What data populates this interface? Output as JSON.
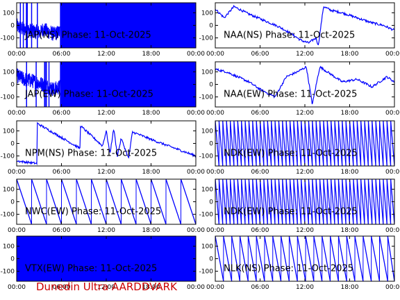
{
  "footer": {
    "text": "Dunedin Ultra AARDDVARK",
    "color": "#cc0000"
  },
  "colors": {
    "trace": "#0000ff",
    "axis": "#000000",
    "title": "#000000"
  },
  "chart_data": [
    {
      "type": "line",
      "title": "JAP(NS) Phase: 11-Oct-2025",
      "x_ticks": [
        "00:00",
        "06:00",
        "12:00",
        "18:00",
        "00:00"
      ],
      "y_ticks": [
        100,
        0,
        -100
      ],
      "ylim": [
        -180,
        180
      ],
      "xlim_hours": [
        0,
        24
      ],
      "grid": false,
      "series": [
        {
          "pattern": "noise",
          "x": [
            0,
            0.3,
            1.7,
            3.2,
            3.5,
            5.0,
            5.8
          ],
          "y": [
            0,
            -20,
            -40,
            -60,
            -30,
            -70,
            -50
          ]
        },
        {
          "pattern": "solid",
          "x": [
            5.8,
            24
          ],
          "y": [
            -180,
            180
          ]
        }
      ]
    },
    {
      "type": "line",
      "title": "NAA(NS) Phase: 11-Oct-2025",
      "x_ticks": [
        "00:00",
        "06:00",
        "12:00",
        "18:00",
        "00:00"
      ],
      "y_ticks": [
        100,
        0,
        -100
      ],
      "ylim": [
        -180,
        180
      ],
      "xlim_hours": [
        0,
        24
      ],
      "grid": false,
      "series": [
        {
          "pattern": "line",
          "x": [
            0,
            1.2,
            2.5,
            4.5,
            6.5,
            8.5,
            10,
            11.5,
            12.5,
            13.5,
            13.8,
            14.5,
            15.5,
            17,
            19,
            21,
            22.5,
            24
          ],
          "y": [
            130,
            60,
            150,
            90,
            40,
            -10,
            -60,
            -120,
            -140,
            -100,
            -160,
            150,
            120,
            100,
            60,
            20,
            0,
            -40
          ]
        }
      ]
    },
    {
      "type": "line",
      "title": "JAP(EW) Phase: 11-Oct-2025",
      "x_ticks": [
        "00:00",
        "06:00",
        "12:00",
        "18:00",
        "00:00"
      ],
      "y_ticks": [
        100,
        0,
        -100
      ],
      "ylim": [
        -180,
        180
      ],
      "xlim_hours": [
        0,
        24
      ],
      "grid": false,
      "series": [
        {
          "pattern": "noise",
          "x": [
            0,
            1.0,
            2.0,
            3.0,
            3.5,
            5.0,
            5.8
          ],
          "y": [
            70,
            40,
            30,
            10,
            0,
            -40,
            -20
          ]
        },
        {
          "pattern": "solid",
          "x": [
            5.8,
            24
          ],
          "y": [
            -180,
            180
          ]
        }
      ]
    },
    {
      "type": "line",
      "title": "NAA(EW) Phase: 11-Oct-2025",
      "x_ticks": [
        "00:00",
        "06:00",
        "12:00",
        "18:00",
        "00:00"
      ],
      "y_ticks": [
        100,
        0,
        -100
      ],
      "ylim": [
        -180,
        180
      ],
      "xlim_hours": [
        0,
        24
      ],
      "grid": false,
      "series": [
        {
          "pattern": "line",
          "x": [
            0,
            1.5,
            3,
            4.5,
            6,
            8,
            9.5,
            11,
            12.2,
            13,
            14,
            15.5,
            17,
            19,
            21,
            23,
            24
          ],
          "y": [
            120,
            100,
            60,
            20,
            -40,
            -100,
            60,
            100,
            140,
            -160,
            140,
            80,
            20,
            40,
            -20,
            60,
            20
          ]
        }
      ]
    },
    {
      "type": "line",
      "title": "NPM(NS) Phase: 11-Oct-2025",
      "x_ticks": [
        "00:00",
        "06:00",
        "12:00",
        "18:00",
        "00:00"
      ],
      "y_ticks": [
        100,
        0,
        -100
      ],
      "ylim": [
        -180,
        180
      ],
      "xlim_hours": [
        0,
        24
      ],
      "grid": false,
      "series": [
        {
          "pattern": "line",
          "x": [
            0,
            2.7,
            2.75,
            8.5,
            8.55,
            11.5,
            12,
            12.5,
            13,
            13.5,
            14,
            15,
            15.5,
            16,
            18.5,
            24
          ],
          "y": [
            -140,
            -160,
            160,
            -40,
            140,
            -20,
            100,
            -80,
            120,
            -100,
            40,
            -120,
            90,
            80,
            20,
            -100
          ]
        }
      ]
    },
    {
      "type": "line",
      "title": "NDK(EW) Phase: 11-Oct-2025",
      "x_ticks": [
        "00:00",
        "06:00",
        "12:00",
        "18:00",
        "00:00"
      ],
      "y_ticks": [
        100,
        0,
        -100
      ],
      "ylim": [
        -180,
        180
      ],
      "xlim_hours": [
        0,
        24
      ],
      "grid": false,
      "series": [
        {
          "pattern": "wrap-dense",
          "period_hours": 0.5,
          "x": [
            0,
            24
          ],
          "y": [
            -180,
            180
          ]
        }
      ]
    },
    {
      "type": "line",
      "title": "NWC(EW) Phase: 11-Oct-2025",
      "x_ticks": [
        "00:00",
        "06:00",
        "12:00",
        "18:00",
        "00:00"
      ],
      "y_ticks": [
        100,
        0,
        -100
      ],
      "ylim": [
        -180,
        180
      ],
      "xlim_hours": [
        0,
        24
      ],
      "grid": false,
      "series": [
        {
          "pattern": "wrap-dense",
          "period_hours": 2.0,
          "x": [
            0,
            24
          ],
          "y": [
            -180,
            180
          ]
        }
      ]
    },
    {
      "type": "line",
      "title": "NDK(EW) Phase: 11-Oct-2025",
      "x_ticks": [
        "00:00",
        "06:00",
        "12:00",
        "18:00",
        "00:00"
      ],
      "y_ticks": [
        100,
        0,
        -100
      ],
      "ylim": [
        -180,
        180
      ],
      "xlim_hours": [
        0,
        24
      ],
      "grid": false,
      "series": [
        {
          "pattern": "wrap-dense",
          "period_hours": 0.5,
          "x": [
            0,
            24
          ],
          "y": [
            -180,
            180
          ]
        }
      ]
    },
    {
      "type": "line",
      "title": "VTX(EW) Phase: 11-Oct-2025",
      "x_ticks": [
        "00:00",
        "06:00",
        "12:00",
        "18:00",
        "00:00"
      ],
      "y_ticks": [
        100,
        0,
        -100
      ],
      "ylim": [
        -180,
        180
      ],
      "xlim_hours": [
        0,
        24
      ],
      "grid": false,
      "series": [
        {
          "pattern": "solid",
          "x": [
            0,
            24
          ],
          "y": [
            -180,
            180
          ]
        }
      ]
    },
    {
      "type": "line",
      "title": "NLK(NS) Phase: 11-Oct-2025",
      "x_ticks": [
        "00:00",
        "06:00",
        "12:00",
        "18:00",
        "00:00"
      ],
      "y_ticks": [
        100,
        0,
        -100
      ],
      "ylim": [
        -180,
        180
      ],
      "xlim_hours": [
        0,
        24
      ],
      "grid": false,
      "series": [
        {
          "pattern": "wrap-dense",
          "period_hours": 1.1,
          "x": [
            0,
            24
          ],
          "y": [
            -180,
            180
          ]
        }
      ]
    }
  ]
}
